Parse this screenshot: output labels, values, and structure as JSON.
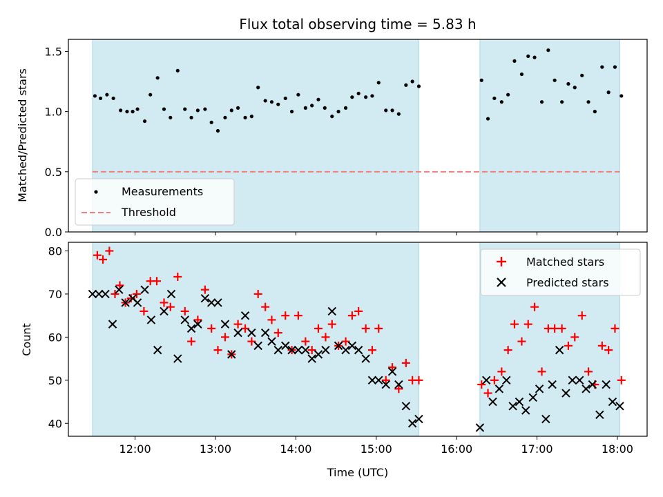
{
  "chart_data": {
    "type": "scatter",
    "title": "Flux total observing time = 5.83 h",
    "shaded_intervals_hours": [
      [
        11.47,
        15.53
      ],
      [
        16.29,
        18.03
      ]
    ],
    "xlabel": "Time (UTC)",
    "xlim_hours": [
      11.17,
      18.37
    ],
    "xtick_values_hours": [
      12,
      13,
      14,
      15,
      16,
      17,
      18
    ],
    "xtick_labels": [
      "12:00",
      "13:00",
      "14:00",
      "15:00",
      "16:00",
      "17:00",
      "18:00"
    ],
    "colors": {
      "shade": "#add8e6",
      "threshold": "#f08080",
      "matched": "#ff0000",
      "predicted": "#000000",
      "measurement": "#000000"
    },
    "top": {
      "ylabel": "Matched/Predicted stars",
      "ylim": [
        0,
        1.6
      ],
      "yticks": [
        0.0,
        0.5,
        1.0,
        1.5
      ],
      "ytick_labels": [
        "0.0",
        "0.5",
        "1.0",
        "1.5"
      ],
      "threshold": 0.5,
      "legend_position": "lower-left",
      "series": [
        {
          "name": "Measurements",
          "kind": "dots",
          "x": [
            11.5,
            11.57,
            11.65,
            11.73,
            11.82,
            11.9,
            11.97,
            12.03,
            12.12,
            12.19,
            12.28,
            12.36,
            12.44,
            12.53,
            12.62,
            12.7,
            12.78,
            12.87,
            12.95,
            13.03,
            13.12,
            13.2,
            13.28,
            13.37,
            13.45,
            13.53,
            13.62,
            13.7,
            13.78,
            13.87,
            13.95,
            14.03,
            14.12,
            14.2,
            14.28,
            14.36,
            14.45,
            14.53,
            14.62,
            14.7,
            14.78,
            14.87,
            14.95,
            15.03,
            15.12,
            15.2,
            15.28,
            15.37,
            15.45,
            15.53,
            16.31,
            16.39,
            16.47,
            16.56,
            16.64,
            16.72,
            16.81,
            16.89,
            16.97,
            17.06,
            17.14,
            17.22,
            17.31,
            17.39,
            17.47,
            17.56,
            17.64,
            17.72,
            17.81,
            17.89,
            17.97,
            18.05
          ],
          "values": [
            1.13,
            1.11,
            1.14,
            1.11,
            1.01,
            1.0,
            1.0,
            1.02,
            0.92,
            1.14,
            1.28,
            1.02,
            0.95,
            1.34,
            1.02,
            0.95,
            1.01,
            1.02,
            0.91,
            0.84,
            0.95,
            1.01,
            1.03,
            0.95,
            0.96,
            1.2,
            1.09,
            1.08,
            1.06,
            1.11,
            1.0,
            1.14,
            1.03,
            1.05,
            1.1,
            1.03,
            0.96,
            1.0,
            1.03,
            1.12,
            1.15,
            1.12,
            1.13,
            1.24,
            1.01,
            1.01,
            0.98,
            1.22,
            1.25,
            1.21,
            1.26,
            0.94,
            1.11,
            1.08,
            1.14,
            1.42,
            1.31,
            1.46,
            1.45,
            1.08,
            1.51,
            1.26,
            1.08,
            1.23,
            1.2,
            1.3,
            1.08,
            1.0,
            1.37,
            1.16,
            1.37,
            1.13
          ]
        },
        {
          "name": "Threshold",
          "kind": "dashed-line",
          "x": [
            11.47,
            18.03
          ],
          "values": [
            0.5,
            0.5
          ]
        }
      ]
    },
    "bottom": {
      "ylabel": "Count",
      "ylim": [
        37,
        82
      ],
      "yticks": [
        40,
        50,
        60,
        70,
        80
      ],
      "ytick_labels": [
        "40",
        "50",
        "60",
        "70",
        "80"
      ],
      "legend_position": "upper-right",
      "series": [
        {
          "name": "Matched stars",
          "marker": "+",
          "x": [
            11.53,
            11.6,
            11.68,
            11.75,
            11.81,
            11.88,
            11.95,
            12.02,
            12.11,
            12.19,
            12.27,
            12.36,
            12.44,
            12.53,
            12.62,
            12.7,
            12.78,
            12.87,
            12.95,
            13.03,
            13.12,
            13.2,
            13.28,
            13.37,
            13.45,
            13.53,
            13.62,
            13.7,
            13.78,
            13.87,
            13.95,
            14.03,
            14.12,
            14.2,
            14.28,
            14.37,
            14.45,
            14.53,
            14.62,
            14.7,
            14.78,
            14.87,
            14.95,
            15.03,
            15.12,
            15.2,
            15.28,
            15.37,
            15.45,
            15.53,
            16.31,
            16.39,
            16.47,
            16.56,
            16.64,
            16.72,
            16.81,
            16.89,
            16.97,
            17.06,
            17.14,
            17.22,
            17.31,
            17.39,
            17.47,
            17.56,
            17.64,
            17.72,
            17.81,
            17.89,
            17.97,
            18.05
          ],
          "values": [
            79,
            78,
            80,
            70,
            72,
            68,
            69,
            70,
            66,
            73,
            73,
            68,
            67,
            74,
            66,
            59,
            64,
            71,
            62,
            57,
            60,
            56,
            63,
            62,
            59,
            70,
            67,
            64,
            61,
            65,
            57,
            65,
            59,
            57,
            62,
            60,
            63,
            58,
            59,
            65,
            66,
            62,
            57,
            62,
            50,
            53,
            48,
            54,
            50,
            50,
            49,
            47,
            50,
            52,
            57,
            63,
            59,
            63,
            67,
            52,
            62,
            62,
            62,
            58,
            60,
            65,
            52,
            49,
            58,
            57,
            62,
            50
          ]
        },
        {
          "name": "Predicted stars",
          "marker": "x",
          "x": [
            11.47,
            11.55,
            11.63,
            11.72,
            11.8,
            11.88,
            11.97,
            12.03,
            12.12,
            12.2,
            12.28,
            12.36,
            12.45,
            12.53,
            12.62,
            12.7,
            12.78,
            12.87,
            12.95,
            13.03,
            13.12,
            13.2,
            13.28,
            13.37,
            13.45,
            13.53,
            13.62,
            13.7,
            13.78,
            13.87,
            13.95,
            14.03,
            14.12,
            14.2,
            14.28,
            14.37,
            14.45,
            14.53,
            14.62,
            14.7,
            14.78,
            14.87,
            14.95,
            15.03,
            15.12,
            15.2,
            15.28,
            15.37,
            15.45,
            15.53,
            16.29,
            16.37,
            16.45,
            16.53,
            16.62,
            16.7,
            16.78,
            16.86,
            16.95,
            17.03,
            17.11,
            17.19,
            17.28,
            17.36,
            17.44,
            17.53,
            17.61,
            17.69,
            17.78,
            17.86,
            17.94,
            18.03
          ],
          "values": [
            70,
            70,
            70,
            63,
            71,
            68,
            69,
            68,
            71,
            64,
            57,
            66,
            70,
            55,
            64,
            62,
            63,
            69,
            68,
            68,
            63,
            56,
            61,
            65,
            61,
            58,
            61,
            59,
            57,
            58,
            57,
            57,
            57,
            55,
            56,
            57,
            66,
            58,
            57,
            58,
            57,
            55,
            50,
            50,
            49,
            52,
            49,
            44,
            40,
            41,
            39,
            50,
            45,
            48,
            50,
            44,
            45,
            43,
            46,
            48,
            41,
            49,
            57,
            47,
            50,
            50,
            48,
            49,
            42,
            49,
            45,
            44
          ]
        }
      ]
    }
  }
}
